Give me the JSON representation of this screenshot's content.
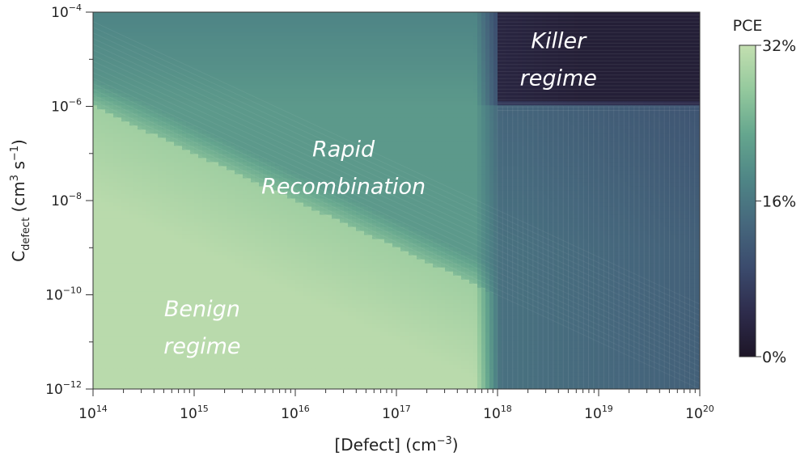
{
  "chart_data": {
    "type": "heatmap",
    "x_scale": "log",
    "y_scale": "log",
    "xlim": [
      100000000000000.0,
      1e+20
    ],
    "ylim": [
      1e-12,
      0.0001
    ],
    "xlabel": "[Defect] (cm",
    "xlabel_sup": "−3",
    "xlabel_tail": ")",
    "ylabel_main": "C",
    "ylabel_sub": "defect",
    "ylabel_unit": " (cm",
    "ylabel_sup1": "3",
    "ylabel_mid": " s",
    "ylabel_sup2": "−1",
    "ylabel_tail": ")",
    "x_ticks": [
      {
        "value": 100000000000000.0,
        "base": "10",
        "exp": "14"
      },
      {
        "value": 1000000000000000.0,
        "base": "10",
        "exp": "15"
      },
      {
        "value": 1e+16,
        "base": "10",
        "exp": "16"
      },
      {
        "value": 1e+17,
        "base": "10",
        "exp": "17"
      },
      {
        "value": 1e+18,
        "base": "10",
        "exp": "18"
      },
      {
        "value": 1e+19,
        "base": "10",
        "exp": "19"
      },
      {
        "value": 1e+20,
        "base": "10",
        "exp": "20"
      }
    ],
    "y_ticks": [
      {
        "value": 0.0001,
        "base": "10",
        "exp": "−4"
      },
      {
        "value": 1e-06,
        "base": "10",
        "exp": "−6"
      },
      {
        "value": 1e-08,
        "base": "10",
        "exp": "−8"
      },
      {
        "value": 1e-10,
        "base": "10",
        "exp": "−10"
      },
      {
        "value": 1e-12,
        "base": "10",
        "exp": "−12"
      }
    ],
    "colorbar": {
      "title": "PCE",
      "min": 0,
      "max": 32,
      "ticks": [
        {
          "value": 32,
          "label": "32%"
        },
        {
          "value": 16,
          "label": "16%"
        },
        {
          "value": 0,
          "label": "0%"
        }
      ],
      "colors": [
        "#1d1527",
        "#2e2c4c",
        "#3b4b6d",
        "#46687d",
        "#4f8686",
        "#65a68e",
        "#94c99d",
        "#c3dfb0"
      ]
    },
    "regions": [
      {
        "lines": [
          "Killer",
          "regime"
        ],
        "x": 4e+18,
        "y": 1e-05,
        "pce": 2
      },
      {
        "lines": [
          "Rapid",
          "Recombination"
        ],
        "x": 3e+16,
        "y": 5e-08,
        "pce": 20
      },
      {
        "lines": [
          "Benign",
          "regime"
        ],
        "x": 1200000000000000.0,
        "y": 2e-11,
        "pce": 30
      }
    ],
    "pce_model": {
      "benign_level": 31,
      "rapid_level": 21,
      "mid_level": 15,
      "high_defect_level": 11,
      "killer_level": 2,
      "boundary_diagonal": "C*N = 1e8",
      "defect_threshold": 6e+17,
      "killer_defect_threshold": 1e+18,
      "killer_c_threshold": 1e-06
    }
  }
}
